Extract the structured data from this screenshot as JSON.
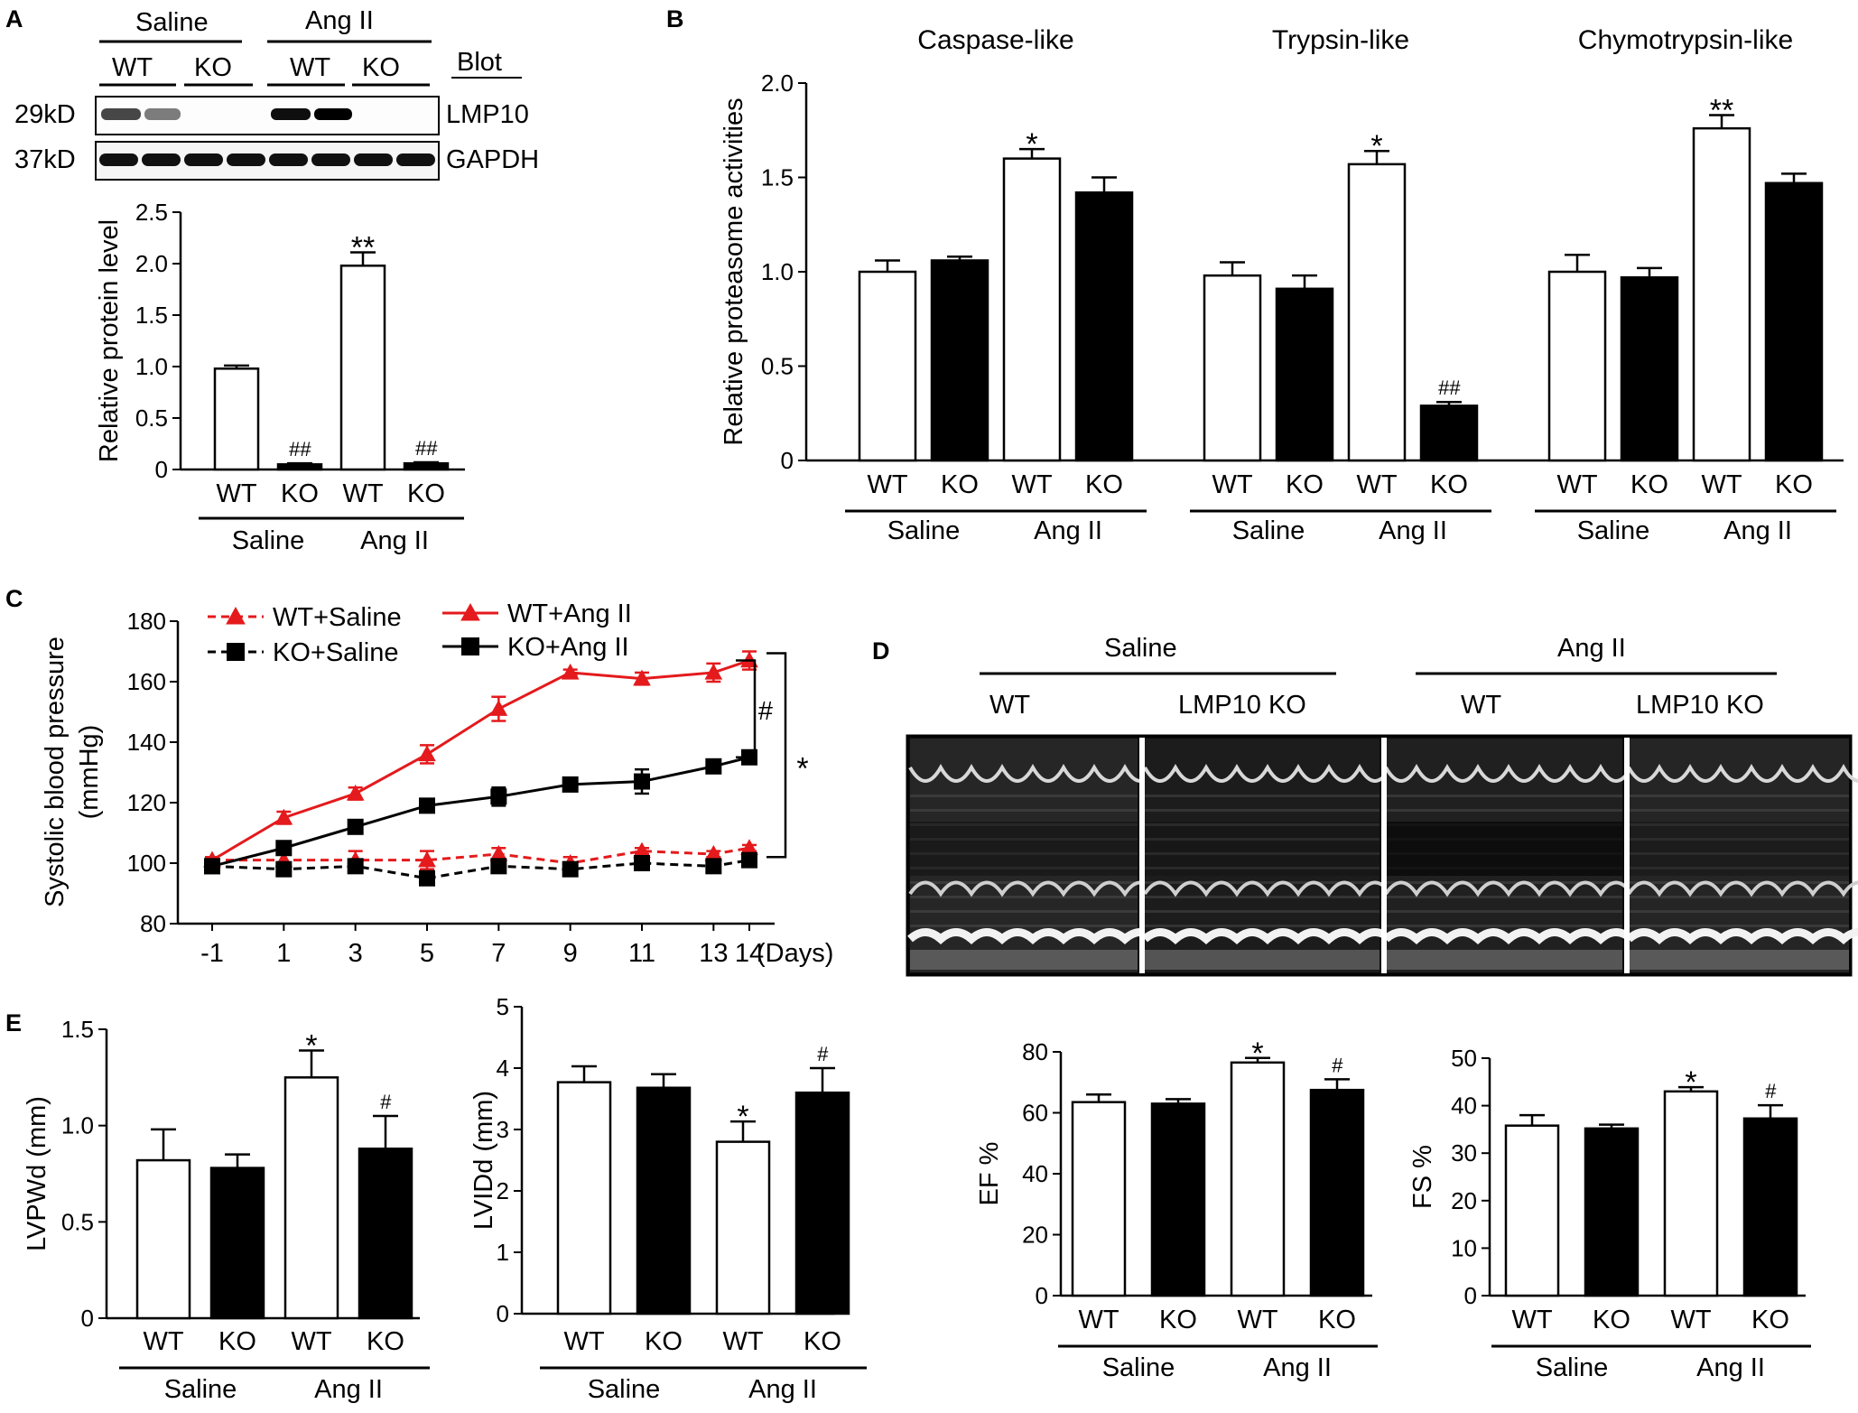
{
  "panel_labels": {
    "A": "A",
    "B": "B",
    "C": "C",
    "D": "D",
    "E": "E"
  },
  "blot": {
    "groups": [
      "Saline",
      "Ang II"
    ],
    "lanes": [
      "WT",
      "KO",
      "WT",
      "KO"
    ],
    "blot_header": "Blot",
    "rows": [
      {
        "kd": "29kD",
        "name": "LMP10"
      },
      {
        "kd": "37kD",
        "name": "GAPDH"
      }
    ]
  },
  "echo": {
    "groups": [
      "Saline",
      "Ang II"
    ],
    "columns": [
      "WT",
      "LMP10 KO",
      "WT",
      "LMP10 KO"
    ]
  },
  "chart_data": [
    {
      "id": "A_protein",
      "type": "bar",
      "ylabel": "Relative protein level",
      "ylim": [
        0,
        2.5
      ],
      "yticks": [
        "0",
        "0.5",
        "1.0",
        "1.5",
        "2.0",
        "2.5"
      ],
      "categories": [
        "WT",
        "KO",
        "WT",
        "KO"
      ],
      "groups": [
        "Saline",
        "Ang II"
      ],
      "fills": [
        "#ffffff",
        "#000000",
        "#ffffff",
        "#000000"
      ],
      "values": [
        0.98,
        0.05,
        1.98,
        0.06
      ],
      "errors": [
        0.03,
        0.01,
        0.13,
        0.01
      ],
      "significance": [
        "",
        "##",
        "**",
        "##"
      ]
    },
    {
      "id": "B_proteasome",
      "type": "bar",
      "ylabel": "Relative proteasome activities",
      "ylim": [
        0,
        2.0
      ],
      "yticks": [
        "0",
        "0.5",
        "1.0",
        "1.5",
        "2.0"
      ],
      "groups": [
        "Saline",
        "Ang II"
      ],
      "series": [
        {
          "name": "Caspase-like",
          "categories": [
            "WT",
            "KO",
            "WT",
            "KO"
          ],
          "values": [
            1.0,
            1.06,
            1.6,
            1.42
          ],
          "errors": [
            0.06,
            0.02,
            0.05,
            0.08
          ],
          "significance": [
            "",
            "",
            "*",
            ""
          ]
        },
        {
          "name": "Trypsin-like",
          "categories": [
            "WT",
            "KO",
            "WT",
            "KO"
          ],
          "values": [
            0.98,
            0.91,
            1.57,
            0.29
          ],
          "errors": [
            0.07,
            0.07,
            0.07,
            0.02
          ],
          "significance": [
            "",
            "",
            "*",
            "##"
          ]
        },
        {
          "name": "Chymotrypsin-like",
          "categories": [
            "WT",
            "KO",
            "WT",
            "KO"
          ],
          "values": [
            1.0,
            0.97,
            1.76,
            1.47
          ],
          "errors": [
            0.09,
            0.05,
            0.07,
            0.05
          ],
          "significance": [
            "",
            "",
            "**",
            ""
          ]
        }
      ],
      "fills": [
        "#ffffff",
        "#000000",
        "#ffffff",
        "#000000"
      ]
    },
    {
      "id": "C_bp",
      "type": "line",
      "ylabel": "Systolic blood pressure",
      "ylabel2": "(mmHg)",
      "ylim": [
        80,
        180
      ],
      "yticks": [
        "80",
        "100",
        "120",
        "140",
        "160",
        "180"
      ],
      "x": [
        -1,
        1,
        3,
        5,
        7,
        9,
        11,
        13,
        14
      ],
      "xticks": [
        "-1",
        "1",
        "3",
        "5",
        "7",
        "9",
        "11",
        "13",
        "14"
      ],
      "xunit": "(Days)",
      "series": [
        {
          "name": "WT+Saline",
          "color": "#e41a1c",
          "dashed": true,
          "marker": "triangle",
          "values": [
            101,
            101,
            101,
            101,
            103,
            100,
            104,
            103,
            105
          ],
          "errors": [
            1,
            2,
            3,
            3,
            2,
            2,
            1,
            1,
            1
          ]
        },
        {
          "name": "KO+Saline",
          "color": "#000000",
          "dashed": true,
          "marker": "square",
          "values": [
            99,
            98,
            99,
            95,
            99,
            98,
            100,
            99,
            101
          ],
          "errors": [
            1,
            2,
            2,
            2,
            1,
            2,
            2,
            1,
            2
          ]
        },
        {
          "name": "WT+Ang II",
          "color": "#e41a1c",
          "dashed": false,
          "marker": "triangle",
          "values": [
            101,
            115,
            123,
            136,
            151,
            163,
            161,
            163,
            167
          ],
          "errors": [
            1,
            2,
            2,
            3,
            4,
            1,
            2,
            3,
            3
          ]
        },
        {
          "name": "KO+Ang II",
          "color": "#000000",
          "dashed": false,
          "marker": "square",
          "values": [
            99,
            105,
            112,
            119,
            122,
            126,
            127,
            132,
            135
          ],
          "errors": [
            1,
            1,
            2,
            1,
            3,
            2,
            4,
            2,
            2
          ]
        }
      ],
      "significance": [
        "#",
        "*"
      ]
    },
    {
      "id": "E_lvpwd",
      "type": "bar",
      "ylabel": "LVPWd (mm)",
      "ylim": [
        0,
        1.5
      ],
      "yticks": [
        "0",
        "0.5",
        "1.0",
        "1.5"
      ],
      "categories": [
        "WT",
        "KO",
        "WT",
        "KO"
      ],
      "groups": [
        "Saline",
        "Ang II"
      ],
      "fills": [
        "#ffffff",
        "#000000",
        "#ffffff",
        "#000000"
      ],
      "values": [
        0.82,
        0.78,
        1.25,
        0.88
      ],
      "errors": [
        0.16,
        0.07,
        0.14,
        0.17
      ],
      "significance": [
        "",
        "",
        "*",
        "#"
      ]
    },
    {
      "id": "E_lvidd",
      "type": "bar",
      "ylabel": "LVIDd (mm)",
      "ylim": [
        0,
        5
      ],
      "yticks": [
        "0",
        "1",
        "2",
        "3",
        "4",
        "5"
      ],
      "categories": [
        "WT",
        "KO",
        "WT",
        "KO"
      ],
      "groups": [
        "Saline",
        "Ang II"
      ],
      "fills": [
        "#ffffff",
        "#000000",
        "#ffffff",
        "#000000"
      ],
      "values": [
        3.77,
        3.68,
        2.8,
        3.6
      ],
      "errors": [
        0.26,
        0.22,
        0.33,
        0.4
      ],
      "significance": [
        "",
        "",
        "*",
        "#"
      ]
    },
    {
      "id": "E_ef",
      "type": "bar",
      "ylabel": "EF %",
      "ylim": [
        0,
        80
      ],
      "yticks": [
        "0",
        "20",
        "40",
        "60",
        "80"
      ],
      "categories": [
        "WT",
        "KO",
        "WT",
        "KO"
      ],
      "groups": [
        "Saline",
        "Ang II"
      ],
      "fills": [
        "#ffffff",
        "#000000",
        "#ffffff",
        "#000000"
      ],
      "values": [
        63.5,
        63,
        76.5,
        67.5
      ],
      "errors": [
        2.5,
        1.5,
        1.5,
        3.5
      ],
      "significance": [
        "",
        "",
        "*",
        "#"
      ]
    },
    {
      "id": "E_fs",
      "type": "bar",
      "ylabel": "FS %",
      "ylim": [
        0,
        50
      ],
      "yticks": [
        "0",
        "10",
        "20",
        "30",
        "40",
        "50"
      ],
      "categories": [
        "WT",
        "KO",
        "WT",
        "KO"
      ],
      "groups": [
        "Saline",
        "Ang II"
      ],
      "fills": [
        "#ffffff",
        "#000000",
        "#ffffff",
        "#000000"
      ],
      "values": [
        35.8,
        35.2,
        43,
        37.3
      ],
      "errors": [
        2.2,
        0.8,
        0.9,
        2.8
      ],
      "significance": [
        "",
        "",
        "*",
        "#"
      ]
    }
  ]
}
